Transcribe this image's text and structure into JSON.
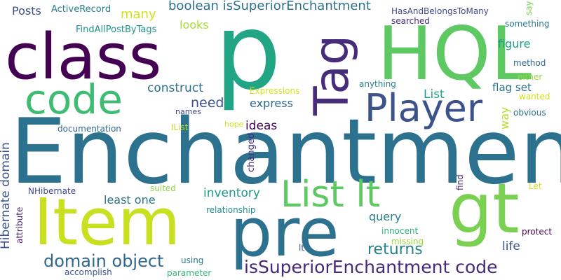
{
  "words": [
    {
      "id": "enchantment",
      "text": "Enchantment",
      "color": "#2c728e"
    },
    {
      "id": "class",
      "text": "class",
      "color": "#440154"
    },
    {
      "id": "p",
      "text": "p",
      "color": "#21a585"
    },
    {
      "id": "hql",
      "text": "HQL",
      "color": "#5ec962"
    },
    {
      "id": "code",
      "text": "code",
      "color": "#3ebc74"
    },
    {
      "id": "tag",
      "text": "Tag",
      "color": "#472c7a"
    },
    {
      "id": "player",
      "text": "Player",
      "color": "#3b528b"
    },
    {
      "id": "item",
      "text": "Item",
      "color": "#c8e020"
    },
    {
      "id": "pre",
      "text": "pre",
      "color": "#2c728e"
    },
    {
      "id": "gt",
      "text": "gt",
      "color": "#7ad151"
    },
    {
      "id": "list-lt",
      "text": "List lt",
      "color": "#5ec962"
    },
    {
      "id": "issuperior-code",
      "text": "isSuperiorEnchantment code",
      "color": "#482878"
    },
    {
      "id": "domain-object",
      "text": "domain object",
      "color": "#31688e"
    },
    {
      "id": "returns",
      "text": "returns",
      "color": "#26828e"
    },
    {
      "id": "boolean-issuperior",
      "text": "boolean isSuperiorEnchantment",
      "color": "#2c728e"
    },
    {
      "id": "hibernate-domain",
      "text": "Hibernate domain",
      "color": "#3b528b"
    },
    {
      "id": "posts",
      "text": "Posts",
      "color": "#3b528b"
    },
    {
      "id": "activerecord",
      "text": "ActiveRecord",
      "color": "#26828e"
    },
    {
      "id": "findallpostbytags",
      "text": "FindAllPostByTags",
      "color": "#21918c"
    },
    {
      "id": "many",
      "text": "many",
      "color": "#d2e21b"
    },
    {
      "id": "looks",
      "text": "looks",
      "color": "#a8db34"
    },
    {
      "id": "hasandbelongstomany",
      "text": "HasAndBelongsToMany",
      "color": "#3e4989"
    },
    {
      "id": "searched",
      "text": "searched",
      "color": "#472d7b"
    },
    {
      "id": "something",
      "text": "something",
      "color": "#2a788e"
    },
    {
      "id": "say",
      "text": "say",
      "color": "#7ad151"
    },
    {
      "id": "figure",
      "text": "figure",
      "color": "#1fa187"
    },
    {
      "id": "method",
      "text": "method",
      "color": "#31688e"
    },
    {
      "id": "either",
      "text": "either",
      "color": "#9bd93c"
    },
    {
      "id": "construct",
      "text": "construct",
      "color": "#2c728e"
    },
    {
      "id": "anything",
      "text": "anything",
      "color": "#27808e"
    },
    {
      "id": "expressions",
      "text": "Expressions",
      "color": "#d8e219"
    },
    {
      "id": "flag-set",
      "text": "flag set",
      "color": "#2c728e"
    },
    {
      "id": "wanted",
      "text": "wanted",
      "color": "#d0e11c"
    },
    {
      "id": "need",
      "text": "need",
      "color": "#3b528b"
    },
    {
      "id": "express",
      "text": "express",
      "color": "#31688e"
    },
    {
      "id": "list",
      "text": "List",
      "color": "#1fa187"
    },
    {
      "id": "way",
      "text": "way",
      "color": "#b5de2b"
    },
    {
      "id": "obvious",
      "text": "obvious",
      "color": "#2d708e"
    },
    {
      "id": "names",
      "text": "names",
      "color": "#3e4a89"
    },
    {
      "id": "ilist",
      "text": "IList",
      "color": "#b8de29"
    },
    {
      "id": "documentation",
      "text": "documentation",
      "color": "#31688e"
    },
    {
      "id": "ideas",
      "text": "ideas",
      "color": "#440154"
    },
    {
      "id": "hope",
      "text": "hope",
      "color": "#d2e21b"
    },
    {
      "id": "changed",
      "text": "changed",
      "color": "#46307e"
    },
    {
      "id": "inventory",
      "text": "inventory",
      "color": "#1f9a8a"
    },
    {
      "id": "nhibernate",
      "text": "NHibernate",
      "color": "#3e4989"
    },
    {
      "id": "suited",
      "text": "suited",
      "color": "#8ed645"
    },
    {
      "id": "least-one",
      "text": "least one",
      "color": "#2c728e"
    },
    {
      "id": "find",
      "text": "find",
      "color": "#472c7a"
    },
    {
      "id": "let",
      "text": "Let",
      "color": "#d5e21a"
    },
    {
      "id": "attribute",
      "text": "attribute",
      "color": "#481b6d"
    },
    {
      "id": "relationship",
      "text": "relationship",
      "color": "#228c8d"
    },
    {
      "id": "query",
      "text": "query",
      "color": "#27808e"
    },
    {
      "id": "protect",
      "text": "protect",
      "color": "#440154"
    },
    {
      "id": "innocent",
      "text": "innocent",
      "color": "#2db27d"
    },
    {
      "id": "missing",
      "text": "missing",
      "color": "#9bd93c"
    },
    {
      "id": "life",
      "text": "life",
      "color": "#3b528b"
    },
    {
      "id": "lt",
      "text": "lt",
      "color": "#3b528b"
    },
    {
      "id": "using",
      "text": "using",
      "color": "#2a788e"
    },
    {
      "id": "accomplish",
      "text": "accomplish",
      "color": "#3b528b"
    },
    {
      "id": "parameter",
      "text": "parameter",
      "color": "#35b779"
    }
  ]
}
